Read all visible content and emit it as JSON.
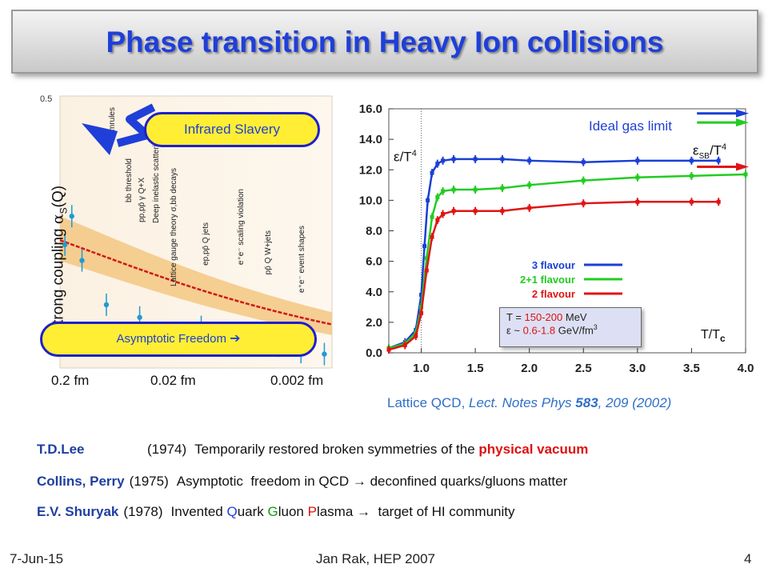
{
  "slide": {
    "title": "Phase transition in Heavy Ion collisions",
    "footer_date": "7-Jun-15",
    "footer_center": "Jan Rak, HEP 2007",
    "page_number": "4"
  },
  "left_chart": {
    "ylabel_prefix": "strong coupling",
    "ylabel_alpha": "α",
    "ylabel_sub": "S",
    "ylabel_suffix": "(Q)",
    "ytick_top": "0.5",
    "x_labels": [
      "0.2 fm",
      "0.02 fm",
      "0.002 fm"
    ],
    "infrared_label": "Infrared Slavery",
    "asymptotic_label": "Asymptotic Freedom",
    "arrow_glyph": "➔",
    "experiment_labels": [
      "Sumrules",
      "bb threshold",
      "pp,pp̄ γ Q+X",
      "Deep inelastic scattering",
      "Lattice gauge theory σ,bb decays",
      "ep,pp̄ Q jets",
      "e⁺e⁻ scaling violation",
      "pp̄ Q W+jets",
      "e⁺e⁻ event shapes"
    ],
    "curve_color": "#d01818",
    "band_color": "#f3c783",
    "point_color": "#1e9ad6",
    "points": [
      {
        "x": 0.32,
        "y": 0.265
      },
      {
        "x": 0.35,
        "y": 0.31
      },
      {
        "x": 0.4,
        "y": 0.24
      },
      {
        "x": 0.55,
        "y": 0.17
      },
      {
        "x": 0.85,
        "y": 0.15
      },
      {
        "x": 1.9,
        "y": 0.135
      },
      {
        "x": 2.3,
        "y": 0.125
      },
      {
        "x": 3.4,
        "y": 0.115
      },
      {
        "x": 3.9,
        "y": 0.11
      },
      {
        "x": 5.2,
        "y": 0.105
      },
      {
        "x": 7.0,
        "y": 0.095
      },
      {
        "x": 9.5,
        "y": 0.092
      }
    ]
  },
  "right_chart": {
    "chart_data": {
      "type": "line",
      "title": "",
      "xlabel": "T/T",
      "xlabel_sub": "c",
      "ylabel": "ε/T",
      "ylabel_sup": "4",
      "xlim": [
        0.7,
        4.0
      ],
      "ylim": [
        0,
        16
      ],
      "xticks": [
        "1.0",
        "1.5",
        "2.0",
        "2.5",
        "3.0",
        "3.5",
        "4.0"
      ],
      "xtick_values": [
        1.0,
        1.5,
        2.0,
        2.5,
        3.0,
        3.5,
        4.0
      ],
      "yticks": [
        "0.0",
        "2.0",
        "4.0",
        "6.0",
        "8.0",
        "10.0",
        "12.0",
        "14.0",
        "16.0"
      ],
      "ytick_values": [
        0,
        2,
        4,
        6,
        8,
        10,
        12,
        14,
        16
      ],
      "series": [
        {
          "name": "3 flavour",
          "color": "#1a3fd6",
          "x": [
            0.7,
            0.85,
            0.95,
            1.0,
            1.03,
            1.06,
            1.1,
            1.15,
            1.2,
            1.3,
            1.5,
            1.75,
            2.0,
            2.5,
            3.0,
            3.5,
            3.75
          ],
          "y": [
            0.3,
            0.7,
            1.5,
            3.8,
            7.0,
            10.0,
            11.8,
            12.4,
            12.6,
            12.7,
            12.7,
            12.7,
            12.6,
            12.5,
            12.6,
            12.6,
            12.6
          ]
        },
        {
          "name": "2+1 flavour",
          "color": "#22cc22",
          "x": [
            0.7,
            0.85,
            0.95,
            1.0,
            1.05,
            1.1,
            1.15,
            1.2,
            1.3,
            1.5,
            1.75,
            2.0,
            2.5,
            3.0,
            3.5,
            4.0
          ],
          "y": [
            0.3,
            0.6,
            1.3,
            3.0,
            6.2,
            8.9,
            10.2,
            10.6,
            10.7,
            10.7,
            10.8,
            11.0,
            11.3,
            11.5,
            11.6,
            11.7
          ]
        },
        {
          "name": "2 flavour",
          "color": "#e01414",
          "x": [
            0.7,
            0.85,
            0.95,
            1.0,
            1.05,
            1.1,
            1.15,
            1.2,
            1.3,
            1.5,
            1.75,
            2.0,
            2.5,
            3.0,
            3.5,
            3.75
          ],
          "y": [
            0.2,
            0.5,
            1.1,
            2.6,
            5.4,
            7.6,
            8.7,
            9.1,
            9.3,
            9.3,
            9.3,
            9.5,
            9.8,
            9.9,
            9.9,
            9.9
          ]
        }
      ],
      "ideal_gas_label": "Ideal gas limit",
      "sb_label_eps": "ε",
      "sb_label_sub": "SB",
      "sb_label_rest": "/T",
      "sb_label_sup": "4",
      "ideal_gas_values": [
        {
          "color": "#1a3fd6",
          "y": 15.7
        },
        {
          "color": "#22cc22",
          "y": 15.1
        },
        {
          "color": "#e01414",
          "y": 12.2
        }
      ],
      "legend_position": "middle-right",
      "grid": false
    },
    "temp_box": {
      "line1_prefix": "T = ",
      "line1_value": "150-200",
      "line1_unit": " MeV",
      "line2_prefix": "ε ~ ",
      "line2_value": "0.6-1.8",
      "line2_unit": " GeV/fm",
      "line2_sup": "3"
    },
    "citation_prefix": "Lattice QCD,",
    "citation_ref": "Lect. Notes Phys ",
    "citation_vol": "583",
    "citation_rest": ", 209 (2002)"
  },
  "references": [
    {
      "who": "T.D.Lee",
      "year": "(1974)",
      "parts": [
        {
          "t": "Temporarily restored broken symmetries of the ",
          "c": ""
        },
        {
          "t": "physical vacuum",
          "c": "red"
        }
      ]
    },
    {
      "who": "Collins, Perry",
      "year": "(1975)",
      "parts": [
        {
          "t": "Asymptotic  freedom in QCD ",
          "c": ""
        },
        {
          "t": "→",
          "c": ""
        },
        {
          "t": " deconfined quarks/gluons matter",
          "c": ""
        }
      ]
    },
    {
      "who": "E.V. Shuryak",
      "year": "(1978)",
      "parts": [
        {
          "t": "Invented ",
          "c": ""
        },
        {
          "t": "Q",
          "c": "blue"
        },
        {
          "t": "uark ",
          "c": ""
        },
        {
          "t": "G",
          "c": "green"
        },
        {
          "t": "luon ",
          "c": ""
        },
        {
          "t": "P",
          "c": "red"
        },
        {
          "t": "lasma ",
          "c": ""
        },
        {
          "t": "→",
          "c": ""
        },
        {
          "t": "  target of HI community",
          "c": ""
        }
      ]
    }
  ]
}
